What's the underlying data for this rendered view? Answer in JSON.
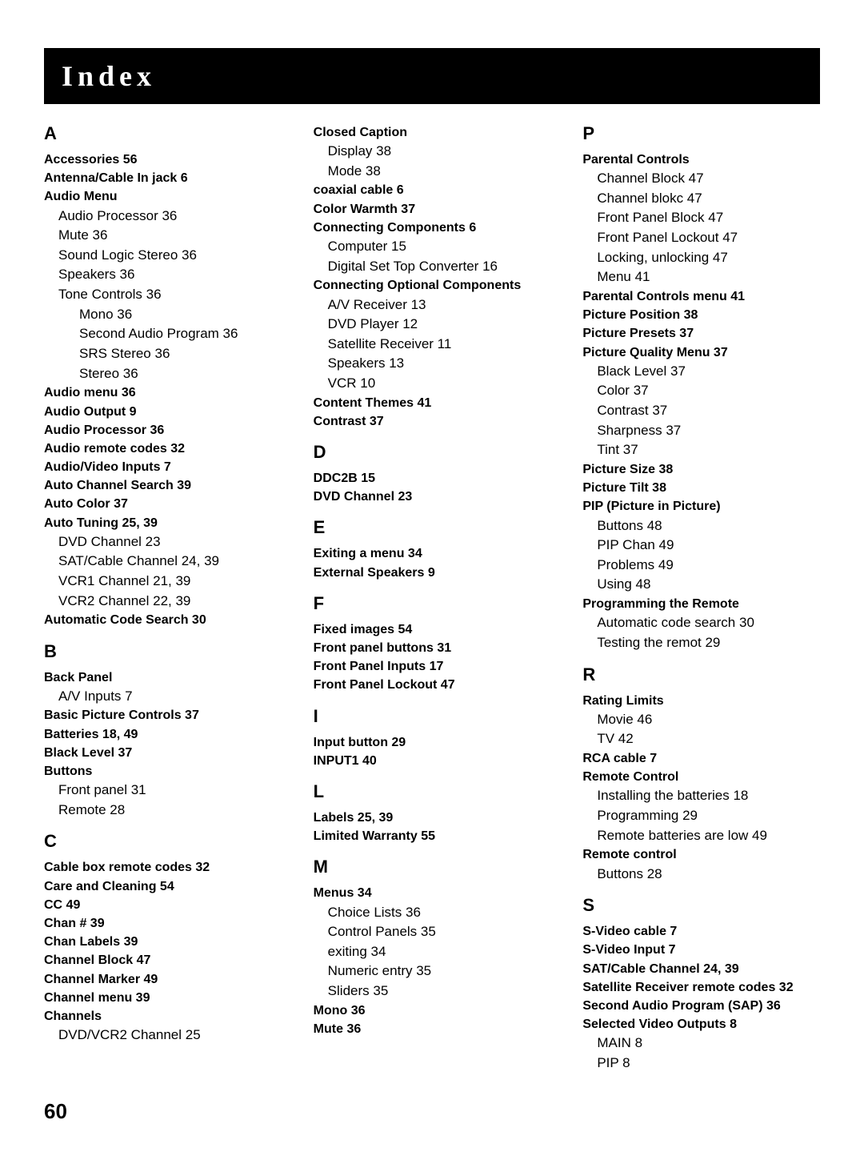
{
  "banner_title": "Index",
  "page_number": "60",
  "columns": [
    [
      {
        "type": "letter",
        "text": "A"
      },
      {
        "type": "bold",
        "text": "Accessories  56"
      },
      {
        "type": "bold",
        "text": "Antenna/Cable In jack  6"
      },
      {
        "type": "bold",
        "text": "Audio Menu"
      },
      {
        "type": "sub",
        "text": "Audio Processor  36"
      },
      {
        "type": "sub",
        "text": "Mute  36"
      },
      {
        "type": "sub",
        "text": "Sound Logic Stereo  36"
      },
      {
        "type": "sub",
        "text": "Speakers  36"
      },
      {
        "type": "sub",
        "text": "Tone Controls  36"
      },
      {
        "type": "subsub",
        "text": "Mono  36"
      },
      {
        "type": "subsub",
        "text": "Second Audio Program  36"
      },
      {
        "type": "subsub",
        "text": "SRS Stereo  36"
      },
      {
        "type": "subsub",
        "text": "Stereo  36"
      },
      {
        "type": "bold",
        "text": "Audio menu  36"
      },
      {
        "type": "bold",
        "text": "Audio Output  9"
      },
      {
        "type": "bold",
        "text": "Audio Processor  36"
      },
      {
        "type": "bold",
        "text": "Audio remote codes  32"
      },
      {
        "type": "bold",
        "text": "Audio/Video Inputs  7"
      },
      {
        "type": "bold",
        "text": "Auto Channel Search  39"
      },
      {
        "type": "bold",
        "text": "Auto Color  37"
      },
      {
        "type": "bold",
        "text": "Auto Tuning  25,  39"
      },
      {
        "type": "sub",
        "text": "DVD Channel  23"
      },
      {
        "type": "sub",
        "text": "SAT/Cable Channel  24,  39"
      },
      {
        "type": "sub",
        "text": "VCR1 Channel  21,  39"
      },
      {
        "type": "sub",
        "text": "VCR2 Channel  22,  39"
      },
      {
        "type": "bold",
        "text": "Automatic Code Search  30"
      },
      {
        "type": "letter",
        "text": "B"
      },
      {
        "type": "bold",
        "text": "Back Panel"
      },
      {
        "type": "sub",
        "text": "A/V Inputs  7"
      },
      {
        "type": "bold",
        "text": "Basic Picture Controls  37"
      },
      {
        "type": "bold",
        "text": "Batteries  18,  49"
      },
      {
        "type": "bold",
        "text": "Black Level  37"
      },
      {
        "type": "bold",
        "text": "Buttons"
      },
      {
        "type": "sub",
        "text": "Front panel  31"
      },
      {
        "type": "sub",
        "text": "Remote  28"
      },
      {
        "type": "letter",
        "text": "C"
      },
      {
        "type": "bold",
        "text": "Cable box remote codes  32"
      },
      {
        "type": "bold",
        "text": "Care and Cleaning  54"
      },
      {
        "type": "bold",
        "text": "CC  49"
      },
      {
        "type": "bold",
        "text": "Chan #  39"
      },
      {
        "type": "bold",
        "text": "Chan Labels  39"
      },
      {
        "type": "bold",
        "text": "Channel Block  47"
      },
      {
        "type": "bold",
        "text": "Channel Marker  49"
      },
      {
        "type": "bold",
        "text": "Channel menu  39"
      },
      {
        "type": "bold",
        "text": "Channels"
      },
      {
        "type": "sub",
        "text": "DVD/VCR2 Channel  25"
      }
    ],
    [
      {
        "type": "bold",
        "text": "Closed Caption"
      },
      {
        "type": "sub",
        "text": "Display  38"
      },
      {
        "type": "sub",
        "text": "Mode  38"
      },
      {
        "type": "bold",
        "text": "coaxial cable  6"
      },
      {
        "type": "bold",
        "text": "Color Warmth  37"
      },
      {
        "type": "bold",
        "text": "Connecting Components  6"
      },
      {
        "type": "sub",
        "text": "Computer  15"
      },
      {
        "type": "sub",
        "text": "Digital Set Top Converter  16"
      },
      {
        "type": "bold",
        "text": "Connecting Optional Components"
      },
      {
        "type": "sub",
        "text": "A/V Receiver  13"
      },
      {
        "type": "sub",
        "text": "DVD Player  12"
      },
      {
        "type": "sub",
        "text": "Satellite Receiver  11"
      },
      {
        "type": "sub",
        "text": "Speakers  13"
      },
      {
        "type": "sub",
        "text": "VCR  10"
      },
      {
        "type": "bold",
        "text": "Content Themes  41"
      },
      {
        "type": "bold",
        "text": "Contrast  37"
      },
      {
        "type": "letter",
        "text": "D"
      },
      {
        "type": "bold",
        "text": "DDC2B  15"
      },
      {
        "type": "bold",
        "text": "DVD Channel  23"
      },
      {
        "type": "letter",
        "text": "E"
      },
      {
        "type": "bold",
        "text": "Exiting a menu  34"
      },
      {
        "type": "bold",
        "text": "External Speakers  9"
      },
      {
        "type": "letter",
        "text": "F"
      },
      {
        "type": "bold",
        "text": "Fixed images  54"
      },
      {
        "type": "bold",
        "text": "Front panel buttons  31"
      },
      {
        "type": "bold",
        "text": "Front Panel Inputs  17"
      },
      {
        "type": "bold",
        "text": "Front Panel Lockout  47"
      },
      {
        "type": "letter",
        "text": "I"
      },
      {
        "type": "bold",
        "text": "Input button  29"
      },
      {
        "type": "bold",
        "text": "INPUT1  40"
      },
      {
        "type": "letter",
        "text": "L"
      },
      {
        "type": "bold",
        "text": "Labels  25,  39"
      },
      {
        "type": "bold",
        "text": "Limited Warranty  55"
      },
      {
        "type": "letter",
        "text": "M"
      },
      {
        "type": "bold",
        "text": "Menus  34"
      },
      {
        "type": "sub",
        "text": "Choice Lists  36"
      },
      {
        "type": "sub",
        "text": "Control Panels  35"
      },
      {
        "type": "sub",
        "text": "exiting  34"
      },
      {
        "type": "sub",
        "text": "Numeric entry  35"
      },
      {
        "type": "sub",
        "text": "Sliders  35"
      },
      {
        "type": "bold",
        "text": "Mono  36"
      },
      {
        "type": "bold",
        "text": "Mute  36"
      }
    ],
    [
      {
        "type": "letter",
        "text": "P"
      },
      {
        "type": "bold",
        "text": "Parental Controls"
      },
      {
        "type": "sub",
        "text": "Channel Block  47"
      },
      {
        "type": "sub",
        "text": "Channel blokc  47"
      },
      {
        "type": "sub",
        "text": "Front Panel Block  47"
      },
      {
        "type": "sub",
        "text": "Front Panel Lockout  47"
      },
      {
        "type": "sub",
        "text": "Locking, unlocking  47"
      },
      {
        "type": "sub",
        "text": "Menu  41"
      },
      {
        "type": "bold",
        "text": "Parental Controls menu  41"
      },
      {
        "type": "bold",
        "text": "Picture Position  38"
      },
      {
        "type": "bold",
        "text": "Picture Presets  37"
      },
      {
        "type": "bold",
        "text": "Picture Quality Menu  37"
      },
      {
        "type": "sub",
        "text": "Black Level  37"
      },
      {
        "type": "sub",
        "text": "Color  37"
      },
      {
        "type": "sub",
        "text": "Contrast  37"
      },
      {
        "type": "sub",
        "text": "Sharpness  37"
      },
      {
        "type": "sub",
        "text": "Tint  37"
      },
      {
        "type": "bold",
        "text": "Picture Size  38"
      },
      {
        "type": "bold",
        "text": "Picture Tilt  38"
      },
      {
        "type": "bold",
        "text": "PIP (Picture in Picture)"
      },
      {
        "type": "sub",
        "text": "Buttons  48"
      },
      {
        "type": "sub",
        "text": "PIP Chan  49"
      },
      {
        "type": "sub",
        "text": "Problems  49"
      },
      {
        "type": "sub",
        "text": "Using  48"
      },
      {
        "type": "bold",
        "text": "Programming the Remote"
      },
      {
        "type": "sub",
        "text": "Automatic code search  30"
      },
      {
        "type": "sub",
        "text": "Testing the remot  29"
      },
      {
        "type": "letter",
        "text": "R"
      },
      {
        "type": "bold",
        "text": "Rating Limits"
      },
      {
        "type": "sub",
        "text": "Movie  46"
      },
      {
        "type": "sub",
        "text": "TV  42"
      },
      {
        "type": "bold",
        "text": "RCA cable  7"
      },
      {
        "type": "bold",
        "text": "Remote Control"
      },
      {
        "type": "sub",
        "text": "Installing the batteries  18"
      },
      {
        "type": "sub",
        "text": "Programming  29"
      },
      {
        "type": "sub",
        "text": "Remote batteries are low  49"
      },
      {
        "type": "bold",
        "text": "Remote control"
      },
      {
        "type": "sub",
        "text": "Buttons  28"
      },
      {
        "type": "letter",
        "text": "S"
      },
      {
        "type": "bold",
        "text": "S-Video cable  7"
      },
      {
        "type": "bold",
        "text": "S-Video Input  7"
      },
      {
        "type": "bold",
        "text": "SAT/Cable Channel  24,  39"
      },
      {
        "type": "bold",
        "text": "Satellite Receiver remote codes  32"
      },
      {
        "type": "bold",
        "text": "Second Audio Program (SAP)  36"
      },
      {
        "type": "bold",
        "text": "Selected Video Outputs  8"
      },
      {
        "type": "sub",
        "text": "MAIN  8"
      },
      {
        "type": "sub",
        "text": "PIP  8"
      }
    ]
  ]
}
